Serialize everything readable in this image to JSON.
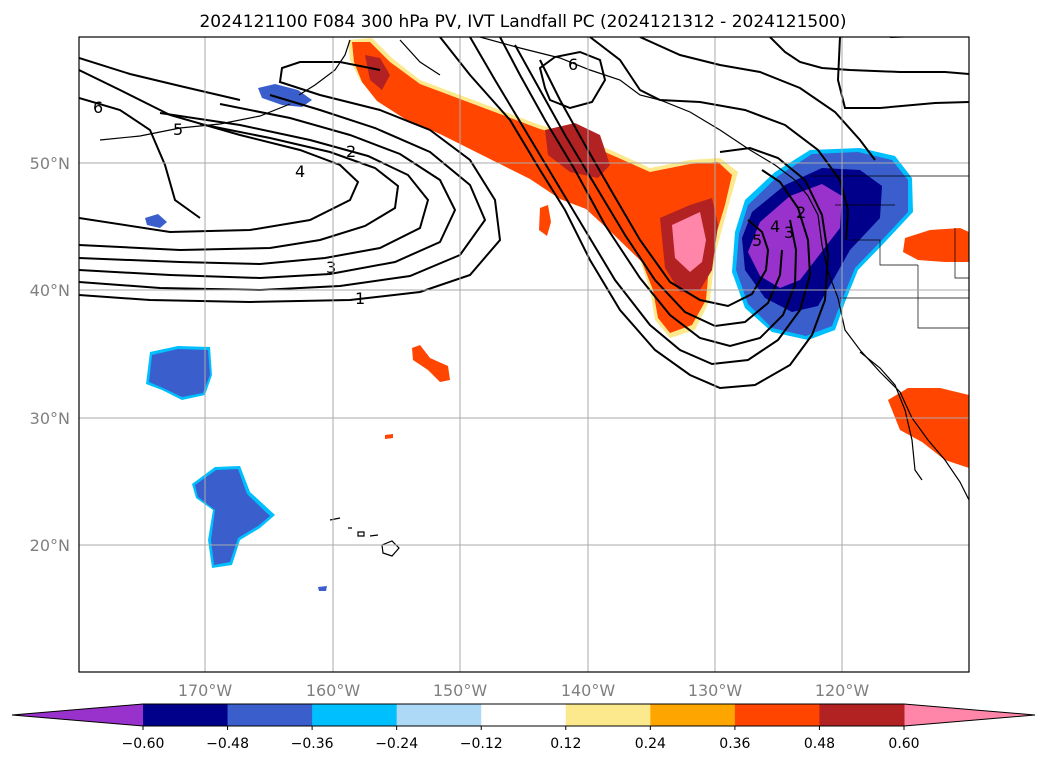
{
  "title": "2024121100 F084 300 hPa PV, IVT Landfall PC (2024121312 - 2024121500)",
  "map": {
    "lon_range": [
      -180,
      -110
    ],
    "lat_range": [
      10,
      60
    ],
    "grid": true,
    "lon_ticks": [
      "170°W",
      "160°W",
      "150°W",
      "140°W",
      "130°W",
      "120°W"
    ],
    "lat_ticks": [
      "50°N",
      "40°N",
      "30°N",
      "20°N"
    ]
  },
  "pv_contours": {
    "line_color": "#000000",
    "labels": [
      "6",
      "5",
      "2",
      "4",
      "3",
      "1",
      "6",
      "5",
      "4",
      "3",
      "2"
    ]
  },
  "ivt_pc_shading": {
    "colors": {
      "lt_-0.60": "#9932CC",
      "-0.60_-0.48": "#00008B",
      "-0.48_-0.36": "#3A5FCD",
      "-0.36_-0.24": "#00BFFF",
      "-0.24_-0.12": "#ADD8F6",
      "-0.12_0.12": "#FFFFFF",
      "0.12_0.24": "#FCE98D",
      "0.24_0.36": "#FFA500",
      "0.36_0.48": "#FF4500",
      "0.48_0.60": "#B22222",
      "gt_0.60": "#FF85A9"
    }
  },
  "colorbar": {
    "levels": [
      "−0.60",
      "−0.48",
      "−0.36",
      "−0.24",
      "−0.12",
      "0.12",
      "0.24",
      "0.36",
      "0.48",
      "0.60"
    ],
    "colors": [
      "#9932CC",
      "#00008B",
      "#3A5FCD",
      "#00BFFF",
      "#ADD8F6",
      "#FFFFFF",
      "#FCE98D",
      "#FFA500",
      "#FF4500",
      "#B22222",
      "#FF85A9"
    ],
    "extend": "both"
  }
}
